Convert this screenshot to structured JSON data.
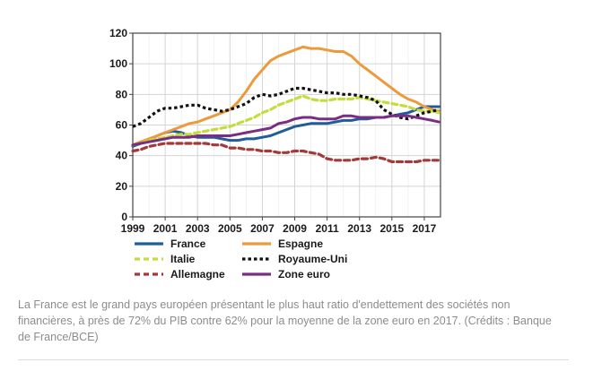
{
  "caption": "La France est le grand pays européen présentant le plus haut ratio d'endettement des sociétés non financières, à près de 72% du PIB contre 62% pour la moyenne de la zone euro en 2017. (Crédits : Banque de France/BCE)",
  "chart_data": {
    "type": "line",
    "title": "",
    "xlabel": "",
    "ylabel": "",
    "xlim": [
      1999,
      2018
    ],
    "ylim": [
      0,
      120
    ],
    "x_ticks": [
      1999,
      2001,
      2003,
      2005,
      2007,
      2009,
      2011,
      2013,
      2015,
      2017
    ],
    "y_ticks": [
      0,
      20,
      40,
      60,
      80,
      100,
      120
    ],
    "grid": true,
    "legend_position": "bottom",
    "x": [
      1999,
      1999.5,
      2000,
      2000.5,
      2001,
      2001.5,
      2002,
      2002.5,
      2003,
      2003.5,
      2004,
      2004.5,
      2005,
      2005.5,
      2006,
      2006.5,
      2007,
      2007.5,
      2008,
      2008.5,
      2009,
      2009.5,
      2010,
      2010.5,
      2011,
      2011.5,
      2012,
      2012.5,
      2013,
      2013.5,
      2014,
      2014.5,
      2015,
      2015.5,
      2016,
      2016.5,
      2017,
      2017.5,
      2017.9
    ],
    "series": [
      {
        "name": "France",
        "color": "#1f5c99",
        "dash": "solid",
        "values": [
          46,
          48,
          50,
          53,
          55,
          56,
          55,
          53,
          52,
          52,
          52,
          51,
          50,
          50,
          51,
          51,
          52,
          53,
          55,
          57,
          59,
          60,
          61,
          61,
          61,
          62,
          63,
          63,
          64,
          64,
          65,
          65,
          66,
          67,
          68,
          70,
          72,
          72,
          72
        ]
      },
      {
        "name": "Espagne",
        "color": "#eb9a3c",
        "dash": "solid",
        "values": [
          47,
          49,
          51,
          53,
          55,
          57,
          59,
          61,
          62,
          64,
          66,
          68,
          70,
          75,
          82,
          90,
          96,
          102,
          105,
          107,
          109,
          111,
          110,
          110,
          109,
          108,
          108,
          105,
          100,
          96,
          92,
          88,
          84,
          80,
          77,
          75,
          72,
          70,
          69
        ]
      },
      {
        "name": "Italie",
        "color": "#c6dc3c",
        "dash": "dashed",
        "values": [
          47,
          48,
          50,
          51,
          52,
          53,
          54,
          54,
          55,
          56,
          57,
          58,
          59,
          61,
          63,
          65,
          68,
          70,
          73,
          75,
          77,
          79,
          77,
          76,
          76,
          77,
          77,
          77,
          78,
          77,
          76,
          75,
          74,
          73,
          72,
          70,
          69,
          69,
          68
        ]
      },
      {
        "name": "Royaume-Uni",
        "color": "#111111",
        "dash": "dotted",
        "values": [
          59,
          61,
          65,
          69,
          71,
          71,
          72,
          73,
          73,
          71,
          70,
          69,
          70,
          72,
          74,
          78,
          80,
          79,
          80,
          82,
          84,
          84,
          83,
          82,
          81,
          81,
          80,
          80,
          79,
          78,
          76,
          70,
          67,
          65,
          64,
          66,
          68,
          69,
          70
        ]
      },
      {
        "name": "Allemagne",
        "color": "#a23a3a",
        "dash": "dashed",
        "values": [
          43,
          44,
          46,
          47,
          48,
          48,
          48,
          48,
          48,
          48,
          47,
          47,
          45,
          45,
          44,
          44,
          43,
          43,
          42,
          42,
          43,
          43,
          42,
          41,
          38,
          37,
          37,
          37,
          38,
          38,
          39,
          38,
          36,
          36,
          36,
          36,
          37,
          37,
          37
        ]
      },
      {
        "name": "Zone euro",
        "color": "#7b2d84",
        "dash": "solid",
        "values": [
          47,
          48,
          49,
          50,
          51,
          52,
          52,
          52,
          53,
          53,
          53,
          53,
          53,
          54,
          55,
          56,
          57,
          58,
          61,
          62,
          64,
          65,
          65,
          64,
          64,
          64,
          66,
          66,
          65,
          65,
          65,
          65,
          66,
          66,
          66,
          65,
          64,
          63,
          62
        ]
      }
    ]
  }
}
